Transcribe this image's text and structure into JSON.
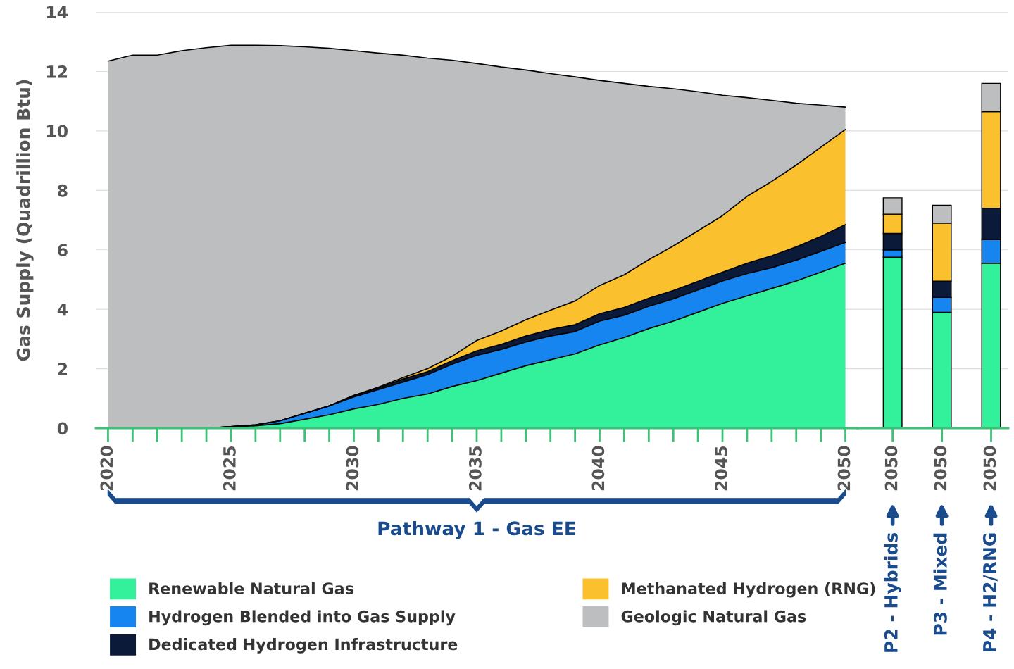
{
  "chart_data": [
    {
      "type": "area",
      "stacked": true,
      "ylabel": "Gas Supply (Quadrillion Btu)",
      "x": [
        2020,
        2021,
        2022,
        2023,
        2024,
        2025,
        2026,
        2027,
        2028,
        2029,
        2030,
        2031,
        2032,
        2033,
        2034,
        2035,
        2036,
        2037,
        2038,
        2039,
        2040,
        2041,
        2042,
        2043,
        2044,
        2045,
        2046,
        2047,
        2048,
        2049,
        2050
      ],
      "series": [
        {
          "name": "Renewable Natural Gas",
          "color": "#33f09a",
          "values": [
            0,
            0,
            0,
            0,
            0,
            0.05,
            0.08,
            0.15,
            0.3,
            0.45,
            0.65,
            0.8,
            1.0,
            1.15,
            1.4,
            1.6,
            1.85,
            2.1,
            2.3,
            2.5,
            2.8,
            3.05,
            3.35,
            3.6,
            3.9,
            4.2,
            4.45,
            4.7,
            4.95,
            5.25,
            5.55
          ]
        },
        {
          "name": "Hydrogen Blended into Gas Supply",
          "color": "#1685f0",
          "values": [
            0,
            0,
            0,
            0,
            0,
            0,
            0.03,
            0.1,
            0.2,
            0.3,
            0.4,
            0.5,
            0.55,
            0.65,
            0.75,
            0.85,
            0.8,
            0.8,
            0.8,
            0.75,
            0.8,
            0.75,
            0.75,
            0.75,
            0.75,
            0.75,
            0.75,
            0.7,
            0.7,
            0.7,
            0.7
          ]
        },
        {
          "name": "Dedicated Hydrogen Infrastructure",
          "color": "#0c1a3a",
          "values": [
            0,
            0,
            0,
            0,
            0,
            0,
            0,
            0,
            0,
            0,
            0.05,
            0.05,
            0.1,
            0.1,
            0.12,
            0.15,
            0.17,
            0.2,
            0.22,
            0.23,
            0.25,
            0.26,
            0.27,
            0.28,
            0.29,
            0.3,
            0.35,
            0.4,
            0.45,
            0.5,
            0.6
          ]
        },
        {
          "name": "Methanated Hydrogen (RNG)",
          "color": "#fbc02d",
          "values": [
            0,
            0,
            0,
            0,
            0,
            0,
            0,
            0,
            0,
            0,
            0,
            0.03,
            0.05,
            0.1,
            0.15,
            0.35,
            0.45,
            0.55,
            0.65,
            0.8,
            0.95,
            1.1,
            1.3,
            1.5,
            1.7,
            1.9,
            2.25,
            2.5,
            2.75,
            3.0,
            3.2
          ]
        },
        {
          "name": "Geologic Natural Gas",
          "color": "#bcbec0",
          "values": [
            12.35,
            12.55,
            12.55,
            12.7,
            12.8,
            12.83,
            12.77,
            12.62,
            12.33,
            12.03,
            11.6,
            11.24,
            10.85,
            10.45,
            9.96,
            9.32,
            8.88,
            8.4,
            7.96,
            7.54,
            6.9,
            6.44,
            5.83,
            5.29,
            4.68,
            4.05,
            3.32,
            2.73,
            2.08,
            1.42,
            0.75
          ]
        }
      ],
      "xlim": [
        2019.5,
        2050.5
      ],
      "xticks": [
        2020,
        2025,
        2030,
        2035,
        2040,
        2045,
        2050
      ],
      "ylim": [
        0,
        14
      ],
      "yticks": [
        0,
        2,
        4,
        6,
        8,
        10,
        12,
        14
      ],
      "grid": "y",
      "legend": "bottom",
      "annotations": [
        "Pathway 1 - Gas EE"
      ]
    },
    {
      "type": "bar",
      "stacked": true,
      "categories": [
        "2050",
        "2050",
        "2050"
      ],
      "series": [
        {
          "color": "#33f09a",
          "values": [
            5.75,
            3.9,
            5.55
          ]
        },
        {
          "color": "#1685f0",
          "values": [
            0.25,
            0.5,
            0.8
          ]
        },
        {
          "color": "#0c1a3a",
          "values": [
            0.55,
            0.55,
            1.05
          ]
        },
        {
          "color": "#fbc02d",
          "values": [
            0.65,
            1.95,
            3.25
          ]
        },
        {
          "color": "#bcbec0",
          "values": [
            0.55,
            0.6,
            0.95
          ]
        }
      ],
      "ylim": [
        0,
        14
      ],
      "yticks": [
        0,
        2,
        4,
        6,
        8,
        10,
        12,
        14
      ],
      "grid": "y",
      "tick_labels": "x",
      "annotations": [
        "P2 - Hybrids",
        "P3 - Mixed",
        "P4 - H2/RNG"
      ]
    }
  ]
}
